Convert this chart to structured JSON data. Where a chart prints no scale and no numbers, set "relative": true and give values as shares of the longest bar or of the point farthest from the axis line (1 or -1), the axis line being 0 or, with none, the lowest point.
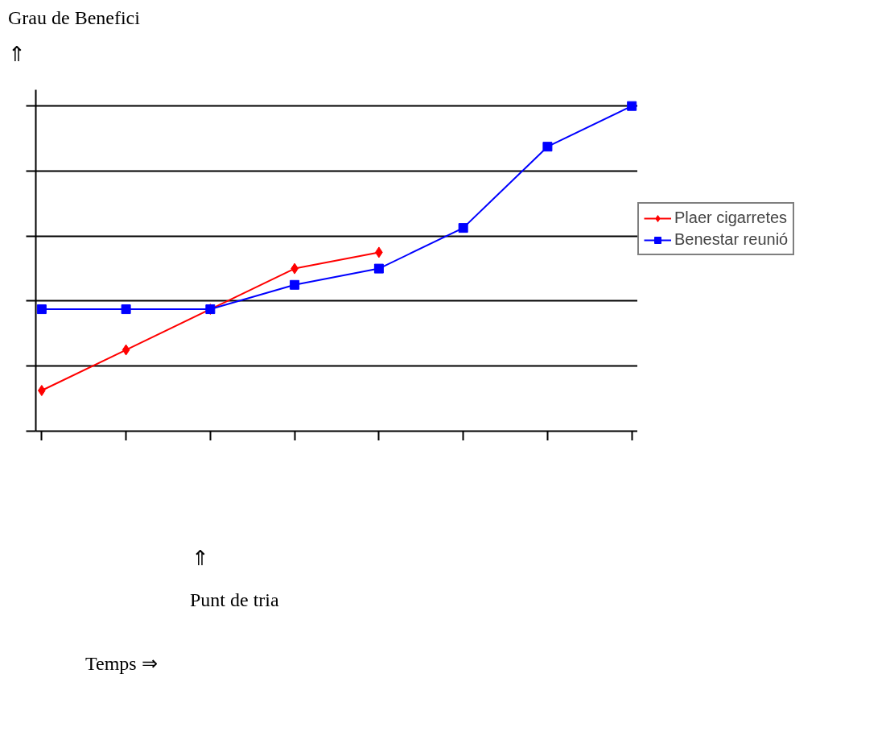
{
  "chart_data": {
    "type": "line",
    "relative": true,
    "categories": [
      null,
      null,
      null,
      null,
      null,
      null,
      null,
      null
    ],
    "series": [
      {
        "name": "Plaer cigarretes",
        "color": "#ff0000",
        "marker": "diamond",
        "values": [
          0.125,
          0.25,
          0.375,
          0.5,
          0.55,
          null,
          null,
          null
        ]
      },
      {
        "name": "Benestar reunió",
        "color": "#0000ff",
        "marker": "square",
        "values": [
          0.375,
          0.375,
          0.375,
          0.45,
          0.5,
          0.625,
          0.875,
          1
        ]
      }
    ],
    "grid": "y",
    "legend": "right",
    "annotations": [
      "Grau de Benefici",
      "⇑",
      "⇑",
      "Punt de tria",
      "Temps  ⇒"
    ]
  }
}
